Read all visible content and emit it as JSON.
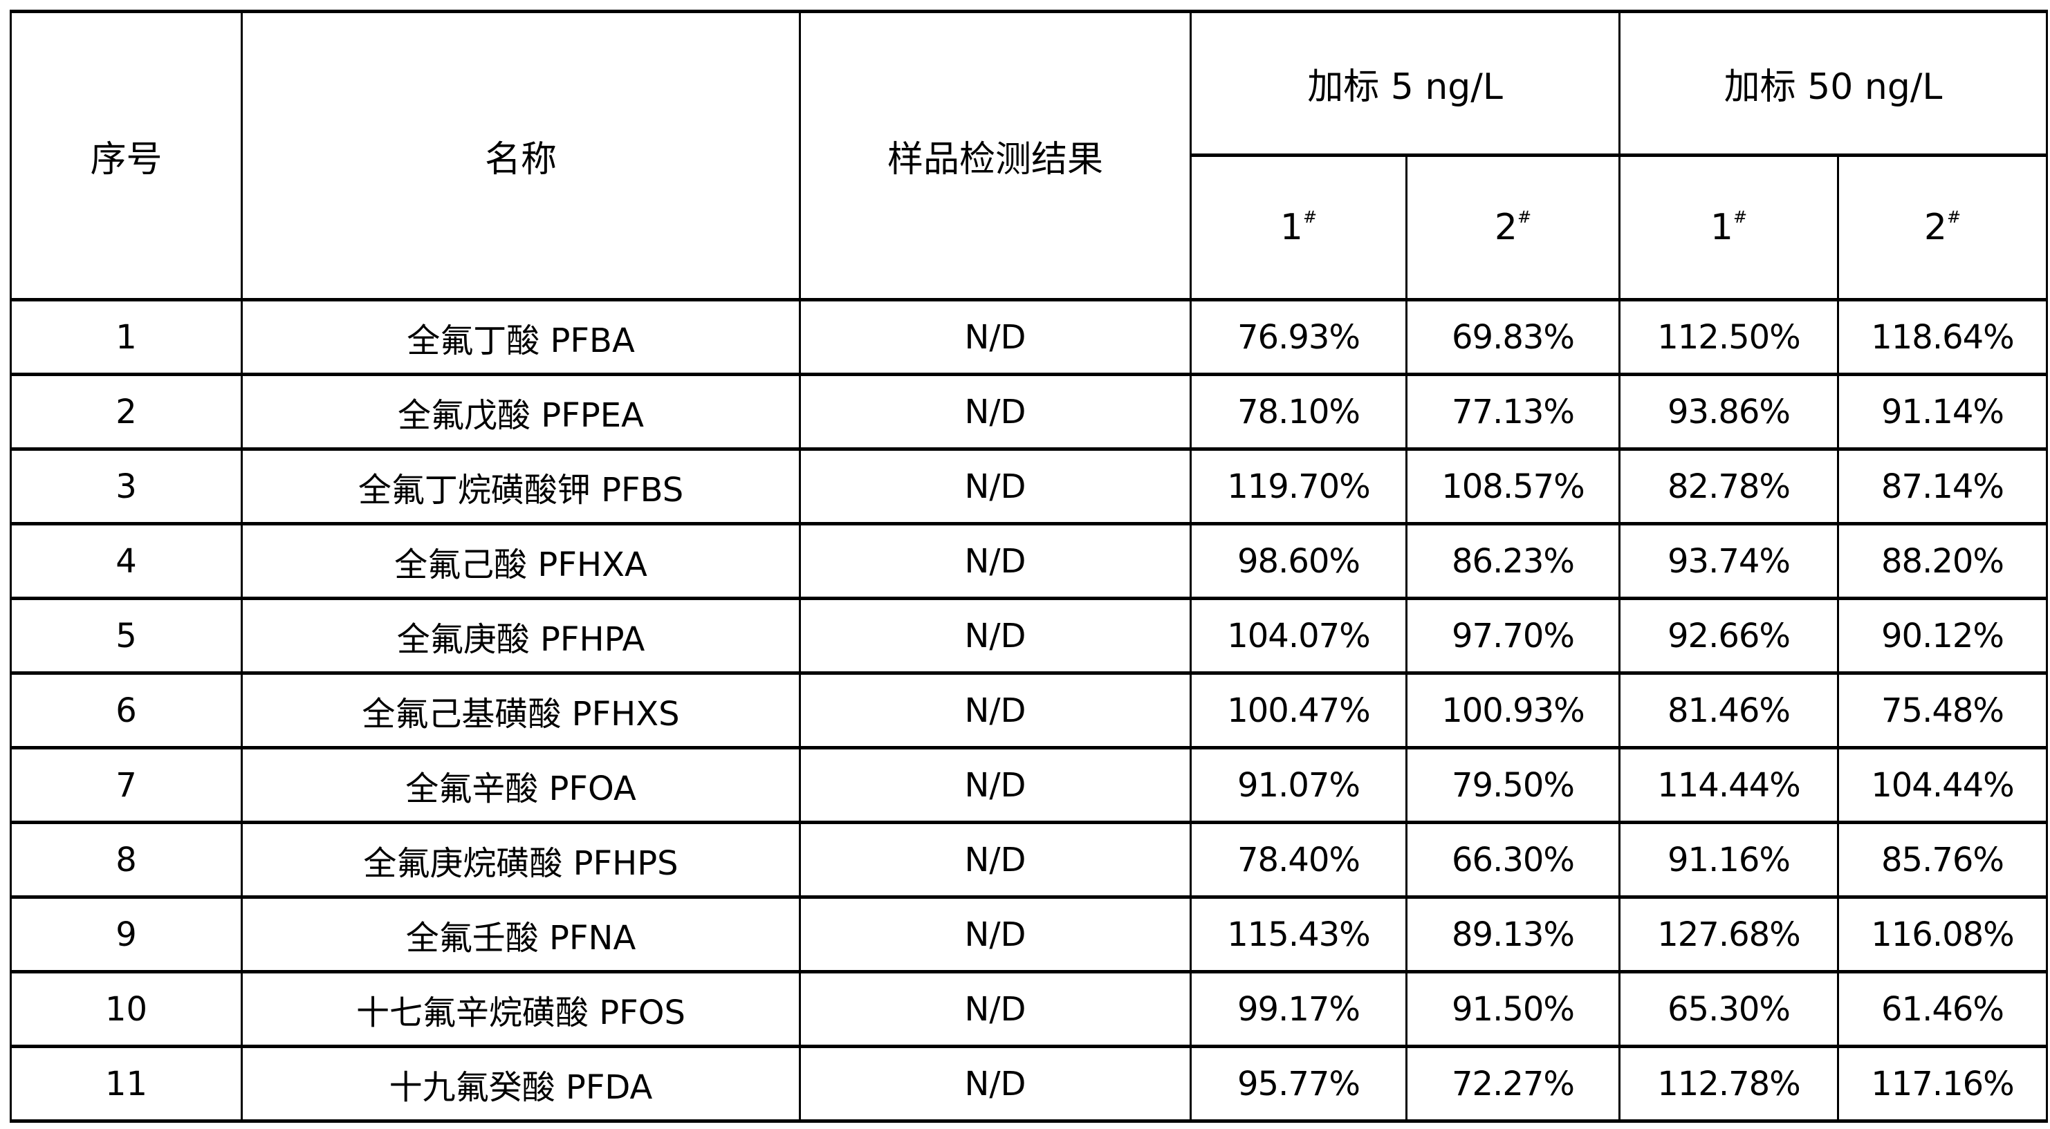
{
  "table": {
    "headers": {
      "index": "序号",
      "name": "名称",
      "sample_result": "样品检测结果",
      "spike_5": "加标 5 ng/L",
      "spike_50": "加标 50 ng/L",
      "sub": [
        {
          "num": "1",
          "mark": "#"
        },
        {
          "num": "2",
          "mark": "#"
        },
        {
          "num": "1",
          "mark": "#"
        },
        {
          "num": "2",
          "mark": "#"
        }
      ]
    },
    "rows": [
      {
        "index": "1",
        "name": "全氟丁酸 PFBA",
        "result": "N/D",
        "v": [
          "76.93%",
          "69.83%",
          "112.50%",
          "118.64%"
        ]
      },
      {
        "index": "2",
        "name": "全氟戊酸 PFPEA",
        "result": "N/D",
        "v": [
          "78.10%",
          "77.13%",
          "93.86%",
          "91.14%"
        ]
      },
      {
        "index": "3",
        "name": "全氟丁烷磺酸钾 PFBS",
        "result": "N/D",
        "v": [
          "119.70%",
          "108.57%",
          "82.78%",
          "87.14%"
        ]
      },
      {
        "index": "4",
        "name": "全氟己酸 PFHXA",
        "result": "N/D",
        "v": [
          "98.60%",
          "86.23%",
          "93.74%",
          "88.20%"
        ]
      },
      {
        "index": "5",
        "name": "全氟庚酸 PFHPA",
        "result": "N/D",
        "v": [
          "104.07%",
          "97.70%",
          "92.66%",
          "90.12%"
        ]
      },
      {
        "index": "6",
        "name": "全氟己基磺酸 PFHXS",
        "result": "N/D",
        "v": [
          "100.47%",
          "100.93%",
          "81.46%",
          "75.48%"
        ]
      },
      {
        "index": "7",
        "name": "全氟辛酸 PFOA",
        "result": "N/D",
        "v": [
          "91.07%",
          "79.50%",
          "114.44%",
          "104.44%"
        ]
      },
      {
        "index": "8",
        "name": "全氟庚烷磺酸 PFHPS",
        "result": "N/D",
        "v": [
          "78.40%",
          "66.30%",
          "91.16%",
          "85.76%"
        ]
      },
      {
        "index": "9",
        "name": "全氟壬酸 PFNA",
        "result": "N/D",
        "v": [
          "115.43%",
          "89.13%",
          "127.68%",
          "116.08%"
        ]
      },
      {
        "index": "10",
        "name": "十七氟辛烷磺酸 PFOS",
        "result": "N/D",
        "v": [
          "99.17%",
          "91.50%",
          "65.30%",
          "61.46%"
        ]
      },
      {
        "index": "11",
        "name": "十九氟癸酸 PFDA",
        "result": "N/D",
        "v": [
          "95.77%",
          "72.27%",
          "112.78%",
          "117.16%"
        ]
      }
    ]
  }
}
